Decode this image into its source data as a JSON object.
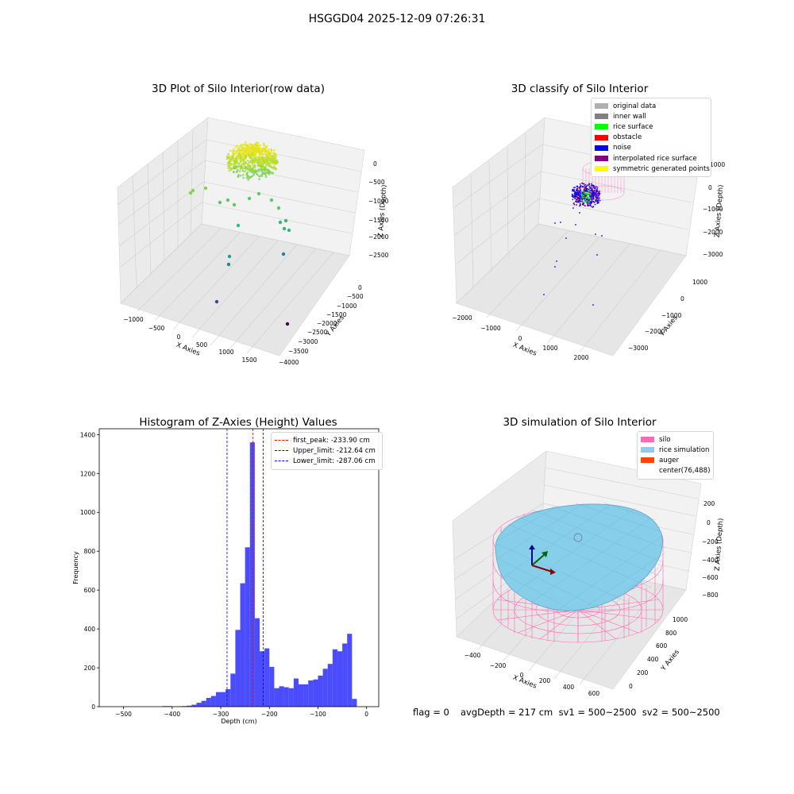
{
  "suptitle": "HSGGD04 2025-12-09 07:26:31",
  "panels": {
    "raw": {
      "title": "3D Plot of Silo Interior(row data)",
      "xlabel": "X Axies",
      "ylabel": "Y Axies",
      "zlabel": "Z Axies (Depth)",
      "xticks": [
        "−1000",
        "−500",
        "0",
        "500",
        "1000",
        "1500"
      ],
      "yticks": [
        "0",
        "−500",
        "−1000",
        "−1500",
        "−2000",
        "−2500",
        "−3000",
        "−3500",
        "−4000"
      ],
      "zticks": [
        "0",
        "−500",
        "−1000",
        "−1500",
        "−2000",
        "−2500"
      ]
    },
    "classify": {
      "title": "3D classify of Silo Interior",
      "xlabel": "X Axies",
      "ylabel": "Y Axies",
      "zlabel": "Z Axies (Depth)",
      "xticks": [
        "−2000",
        "−1000",
        "0",
        "1000",
        "2000"
      ],
      "yticks": [
        "1000",
        "0",
        "−1000",
        "−2000",
        "−3000"
      ],
      "zticks": [
        "1000",
        "0",
        "−1000",
        "−2000",
        "−3000"
      ],
      "legend": [
        {
          "label": "original data",
          "color": "#b0b0b0"
        },
        {
          "label": "inner wall",
          "color": "#808080"
        },
        {
          "label": "rice surface",
          "color": "#00ff00"
        },
        {
          "label": "obstacle",
          "color": "#ff0000"
        },
        {
          "label": "noise",
          "color": "#0000ff"
        },
        {
          "label": "interpolated rice surface",
          "color": "#800080"
        },
        {
          "label": "symmetric generated points",
          "color": "#ffff00"
        }
      ]
    },
    "simulation": {
      "title": "3D simulation of Silo Interior",
      "xlabel": "X Axies",
      "ylabel": "Y Axies",
      "zlabel": "Z Axies (Depth)",
      "xticks": [
        "−400",
        "−200",
        "0",
        "200",
        "400",
        "600"
      ],
      "yticks": [
        "0",
        "200",
        "400",
        "600",
        "800",
        "1000"
      ],
      "zticks": [
        "200",
        "0",
        "−200",
        "−400",
        "−600",
        "−800"
      ],
      "legend": [
        {
          "label": "silo",
          "color": "#ff69b4"
        },
        {
          "label": "rice simulation",
          "color": "#87ceeb"
        },
        {
          "label": "auger",
          "color": "#ff4500"
        },
        {
          "label": "center(76,488)",
          "color": ""
        }
      ]
    }
  },
  "status": {
    "flag": "flag = 0",
    "avg": "avgDepth = 217 cm  sv1 = 500~2500  sv2 = 500~2500"
  },
  "chart_data": [
    {
      "type": "scatter",
      "title": "3D Plot of Silo Interior(row data)",
      "xlabel": "X Axies",
      "ylabel": "Y Axies",
      "zlabel": "Z Axies (Depth)",
      "xlim": [
        -1200,
        1700
      ],
      "ylim": [
        -4000,
        0
      ],
      "zlim": [
        -2800,
        200
      ],
      "grid": true
    },
    {
      "type": "scatter",
      "title": "3D classify of Silo Interior",
      "series": [
        {
          "name": "original data"
        },
        {
          "name": "inner wall"
        },
        {
          "name": "rice surface"
        },
        {
          "name": "obstacle"
        },
        {
          "name": "noise"
        },
        {
          "name": "interpolated rice surface"
        },
        {
          "name": "symmetric generated points"
        }
      ],
      "legend": "top-right",
      "grid": true
    },
    {
      "type": "bar",
      "title": "Histogram of Z-Axies (Height) Values",
      "xlabel": "Depth (cm)",
      "ylabel": "Frequency",
      "xlim": [
        -550,
        25
      ],
      "ylim": [
        0,
        1430
      ],
      "xticks": [
        -500,
        -400,
        -300,
        -200,
        -100,
        0
      ],
      "yticks": [
        0,
        200,
        400,
        600,
        800,
        1000,
        1200,
        1400
      ],
      "bin_width": 10,
      "bins_start": [
        -420,
        -410,
        -400,
        -390,
        -380,
        -370,
        -360,
        -350,
        -340,
        -330,
        -320,
        -310,
        -300,
        -290,
        -280,
        -270,
        -260,
        -250,
        -240,
        -230,
        -220,
        -210,
        -200,
        -190,
        -180,
        -170,
        -160,
        -150,
        -140,
        -130,
        -120,
        -110,
        -100,
        -90,
        -80,
        -70,
        -60,
        -50,
        -40,
        -30,
        -20,
        -10,
        0
      ],
      "values": [
        3,
        3,
        0,
        2,
        3,
        5,
        10,
        20,
        30,
        45,
        55,
        75,
        75,
        90,
        170,
        395,
        635,
        820,
        1360,
        455,
        285,
        300,
        205,
        95,
        105,
        100,
        95,
        145,
        115,
        115,
        135,
        140,
        160,
        195,
        220,
        295,
        285,
        325,
        375,
        40,
        0,
        0,
        0
      ],
      "bar_color": "#0000ff",
      "lines": [
        {
          "name": "first_peak: -233.90 cm",
          "value": -233.9,
          "color": "#ff0000"
        },
        {
          "name": "Upper_limit: -212.64 cm",
          "value": -212.64,
          "color": "#0000ff"
        },
        {
          "name": "Lower_limit: -287.06 cm",
          "value": -287.06,
          "color": "#0000ff"
        }
      ],
      "legend": "top-right"
    },
    {
      "type": "other",
      "title": "3D simulation of Silo Interior",
      "xlabel": "X Axies",
      "ylabel": "Y Axies",
      "zlabel": "Z Axies (Depth)",
      "xlim": [
        -500,
        650
      ],
      "ylim": [
        -100,
        1050
      ],
      "zlim": [
        -900,
        300
      ],
      "series": [
        {
          "name": "silo"
        },
        {
          "name": "rice simulation"
        },
        {
          "name": "auger"
        }
      ],
      "annotations": [
        "center(76,488)"
      ],
      "legend": "top-right"
    }
  ]
}
